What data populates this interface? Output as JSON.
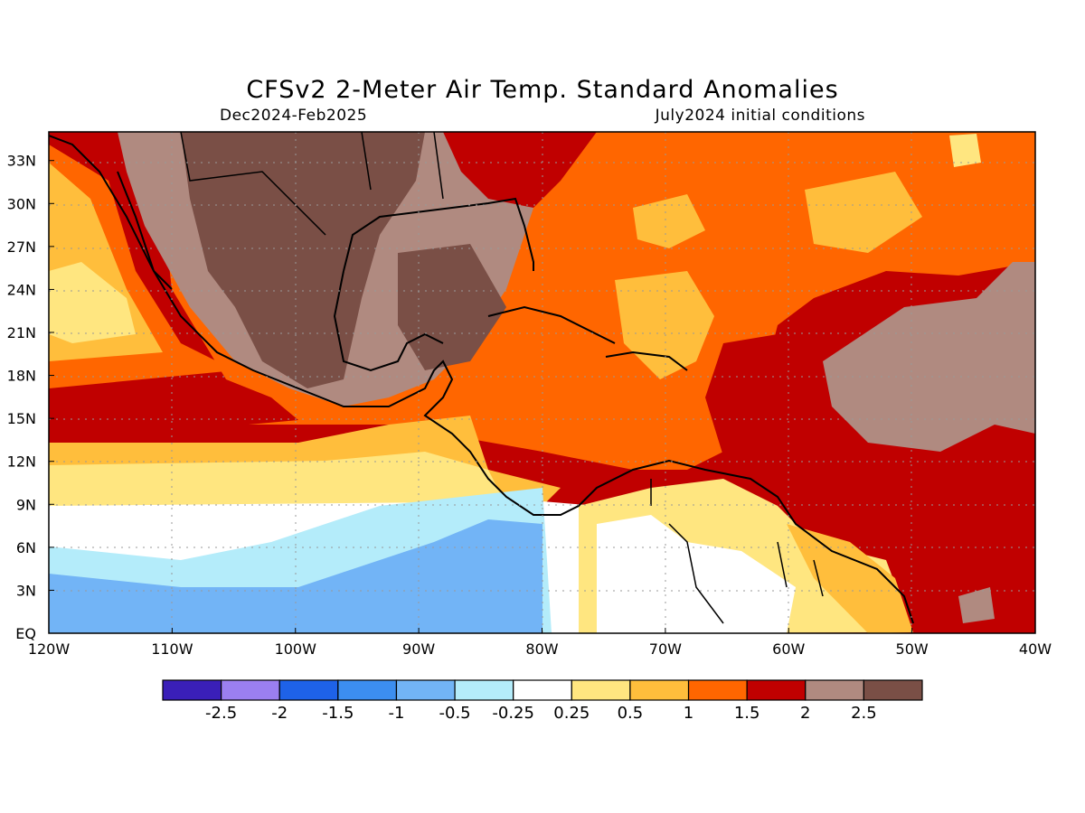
{
  "title": "CFSv2 2-Meter Air Temp. Standard Anomalies",
  "period": "Dec2024-Feb2025",
  "initial_conditions": "July2024 initial conditions",
  "lat_labels": [
    "33N",
    "30N",
    "27N",
    "24N",
    "21N",
    "18N",
    "15N",
    "12N",
    "9N",
    "6N",
    "3N",
    "EQ"
  ],
  "lon_labels": [
    "120W",
    "110W",
    "100W",
    "90W",
    "80W",
    "70W",
    "60W",
    "50W",
    "40W"
  ],
  "colorbar": {
    "colors": [
      "#3a1fb8",
      "#9b7ff0",
      "#1e62e8",
      "#3c8ef0",
      "#72b4f6",
      "#b4ecfa",
      "#ffffff",
      "#ffe680",
      "#ffbe3c",
      "#ff6600",
      "#c00000",
      "#b08a80",
      "#7a4f46"
    ],
    "labels": [
      "-2.5",
      "-2",
      "-1.5",
      "-1",
      "-0.5",
      "-0.25",
      "0.25",
      "0.5",
      "1",
      "1.5",
      "2",
      "2.5"
    ]
  }
}
